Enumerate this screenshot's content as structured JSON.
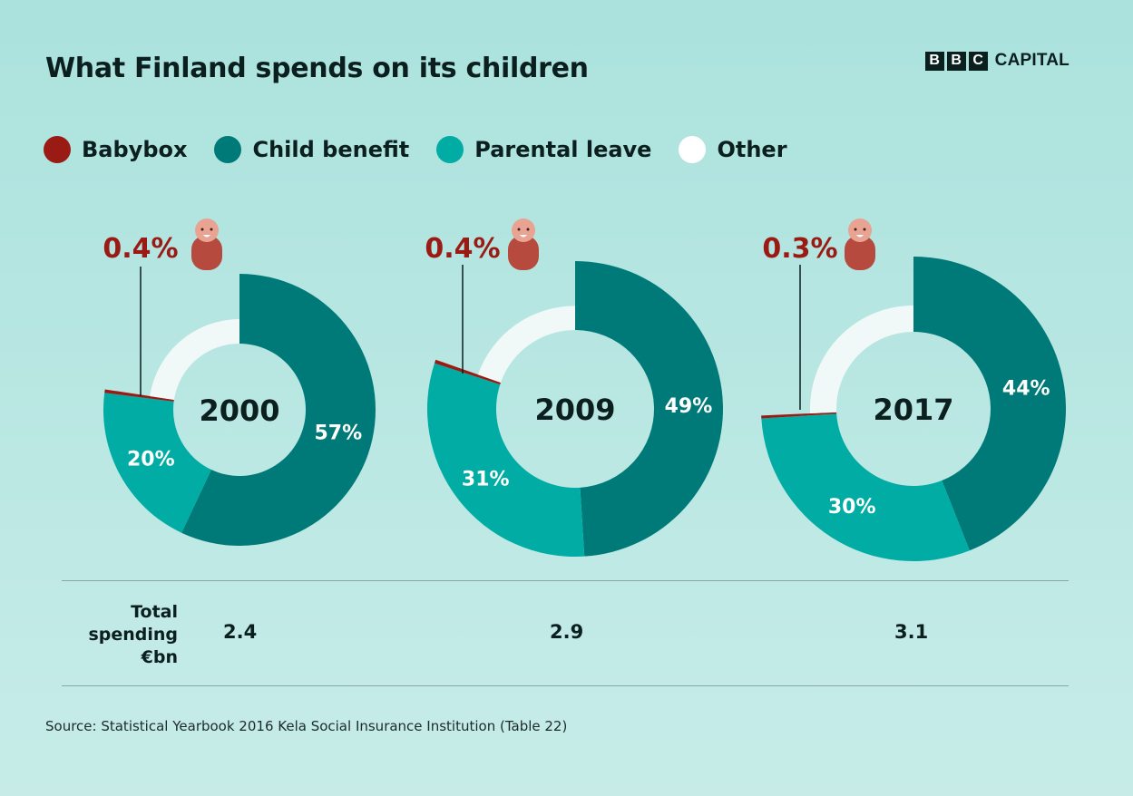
{
  "title": "What Finland spends on its children",
  "logo": {
    "boxes": [
      "B",
      "B",
      "C"
    ],
    "word": "CAPITAL"
  },
  "colors": {
    "babybox": "#9a1b14",
    "child_benefit": "#007a78",
    "parental_leave": "#00aca3",
    "other": "#f1f9f8",
    "baby_icon_body": "#b74a3e",
    "baby_icon_face": "#e9a393"
  },
  "legend": [
    {
      "label": "Babybox",
      "color": "#9a1b14"
    },
    {
      "label": "Child benefit",
      "color": "#007a78"
    },
    {
      "label": "Parental leave",
      "color": "#00aca3"
    },
    {
      "label": "Other",
      "color": "#ffffff"
    }
  ],
  "chart_data": [
    {
      "type": "pie",
      "center_label": "2000",
      "slices": [
        {
          "name": "Child benefit",
          "value": 57,
          "label": "57%"
        },
        {
          "name": "Parental leave",
          "value": 20,
          "label": "20%"
        },
        {
          "name": "Babybox",
          "value": 0.4,
          "label": "0.4%"
        },
        {
          "name": "Other",
          "value": 22.6,
          "label": ""
        }
      ],
      "icon": "baby-icon"
    },
    {
      "type": "pie",
      "center_label": "2009",
      "slices": [
        {
          "name": "Child benefit",
          "value": 49,
          "label": "49%"
        },
        {
          "name": "Parental leave",
          "value": 31,
          "label": "31%"
        },
        {
          "name": "Babybox",
          "value": 0.4,
          "label": "0.4%"
        },
        {
          "name": "Other",
          "value": 19.6,
          "label": ""
        }
      ],
      "icon": "baby-icon"
    },
    {
      "type": "pie",
      "center_label": "2017",
      "slices": [
        {
          "name": "Child benefit",
          "value": 44,
          "label": "44%"
        },
        {
          "name": "Parental leave",
          "value": 30,
          "label": "30%"
        },
        {
          "name": "Babybox",
          "value": 0.3,
          "label": "0.3%"
        },
        {
          "name": "Other",
          "value": 25.7,
          "label": ""
        }
      ],
      "icon": "baby-icon"
    }
  ],
  "totals": {
    "label_lines": [
      "Total",
      "spending",
      "€bn"
    ],
    "values": [
      "2.4",
      "2.9",
      "3.1"
    ]
  },
  "source": "Source: Statistical Yearbook 2016 Kela Social Insurance Institution (Table 22)"
}
